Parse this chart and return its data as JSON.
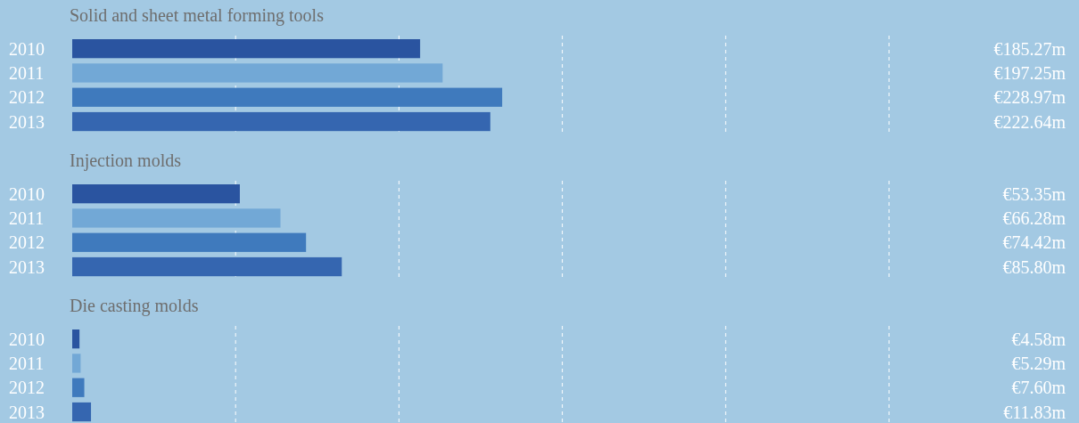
{
  "chart_data": [
    {
      "type": "bar",
      "orientation": "horizontal",
      "title": "Solid and sheet metal forming tools",
      "categories": [
        "2010",
        "2011",
        "2012",
        "2013"
      ],
      "values": [
        185.27,
        197.25,
        228.97,
        222.64
      ],
      "colors": [
        "#2a54a0",
        "#72a8d6",
        "#3f7abd",
        "#3566b0"
      ],
      "value_labels": [
        "€185.27m",
        "€197.25m",
        "€228.97m",
        "€222.64m"
      ],
      "xlim": [
        0,
        435
      ],
      "xticks": [
        {
          "value": 87,
          "label": null
        },
        {
          "value": 174,
          "label": null
        },
        {
          "value": 261,
          "label": null
        },
        {
          "value": 348,
          "label": null
        },
        {
          "value": 435,
          "label": null
        }
      ],
      "grid": "x",
      "tick_labels": "y"
    },
    {
      "type": "bar",
      "orientation": "horizontal",
      "title": "Injection molds",
      "categories": [
        "2010",
        "2011",
        "2012",
        "2013"
      ],
      "values": [
        53.35,
        66.28,
        74.42,
        85.8
      ],
      "colors": [
        "#2a54a0",
        "#72a8d6",
        "#3f7abd",
        "#3566b0"
      ],
      "value_labels": [
        "€53.35m",
        "€66.28m",
        "€74.42m",
        "€85.80m"
      ],
      "xlim": [
        0,
        260
      ],
      "xticks": [
        {
          "value": 52,
          "label": null
        },
        {
          "value": 104,
          "label": null
        },
        {
          "value": 156,
          "label": null
        },
        {
          "value": 208,
          "label": null
        },
        {
          "value": 260,
          "label": null
        }
      ],
      "grid": "x",
      "tick_labels": "y"
    },
    {
      "type": "bar",
      "orientation": "horizontal",
      "title": "Die casting molds",
      "categories": [
        "2010",
        "2011",
        "2012",
        "2013"
      ],
      "values": [
        4.58,
        5.29,
        7.6,
        11.83
      ],
      "colors": [
        "#2a54a0",
        "#72a8d6",
        "#3f7abd",
        "#3566b0"
      ],
      "value_labels": [
        "€4.58m",
        "€5.29m",
        "€7.60m",
        "€11.83m"
      ],
      "xlim": [
        0,
        515
      ],
      "xticks": [
        {
          "value": 103,
          "label": null
        },
        {
          "value": 206,
          "label": null
        },
        {
          "value": 309,
          "label": null
        },
        {
          "value": 412,
          "label": null
        },
        {
          "value": 515,
          "label": null
        }
      ],
      "grid": "x",
      "tick_labels": "y"
    }
  ]
}
